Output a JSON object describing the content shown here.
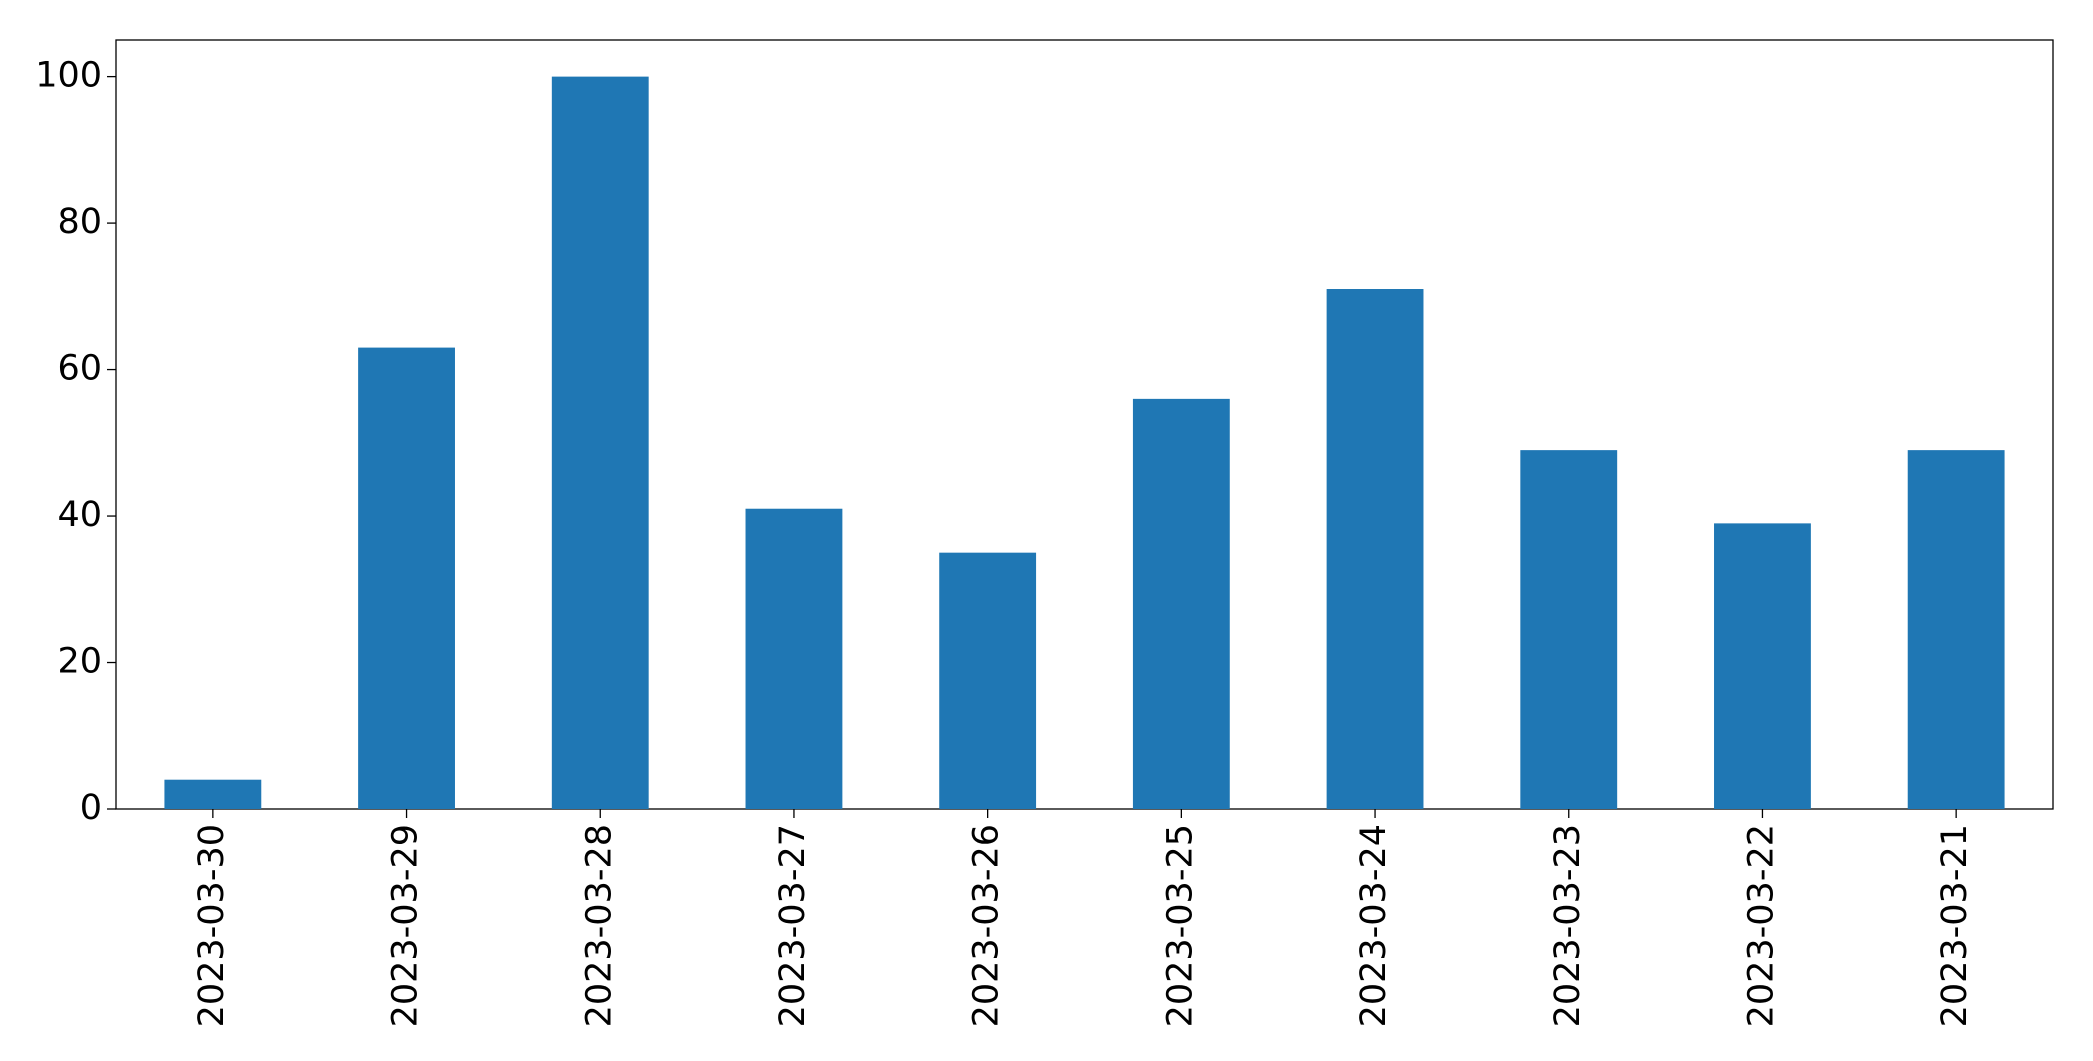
{
  "chart_data": {
    "type": "bar",
    "categories": [
      "2023-03-30",
      "2023-03-29",
      "2023-03-28",
      "2023-03-27",
      "2023-03-26",
      "2023-03-25",
      "2023-03-24",
      "2023-03-23",
      "2023-03-22",
      "2023-03-21"
    ],
    "values": [
      4,
      63,
      100,
      41,
      35,
      56,
      71,
      49,
      39,
      49
    ],
    "color": "#1f77b4",
    "ylim": [
      0,
      105
    ],
    "yticks": [
      0,
      20,
      40,
      60,
      80,
      100
    ],
    "grid": false
  }
}
